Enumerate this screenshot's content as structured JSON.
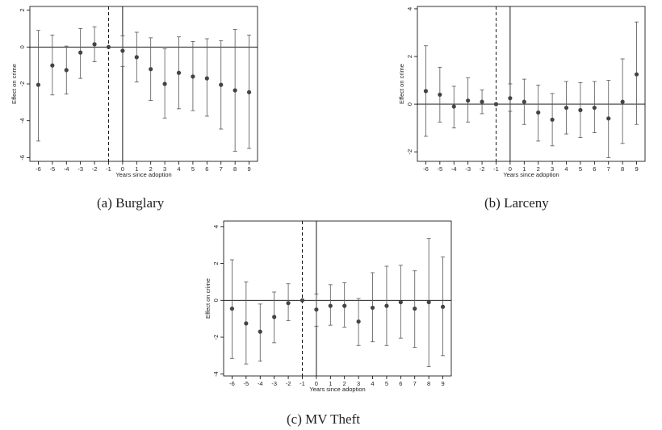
{
  "chart_data": [
    {
      "type": "scatter",
      "caption": "(a) Burglary",
      "xlabel": "Years since adoption",
      "ylabel": "Effect on crime",
      "categories": [
        -6,
        -5,
        -4,
        -3,
        -2,
        -1,
        0,
        1,
        2,
        3,
        4,
        5,
        6,
        7,
        8,
        9
      ],
      "x_tick_labels": [
        "-6",
        "-5",
        "-4",
        "-3",
        "-2",
        "-1",
        "0",
        "1",
        "2",
        "3",
        "4",
        "5",
        "6",
        "7",
        "8",
        "9"
      ],
      "y_ticks": [
        2,
        0,
        -2,
        -4,
        -6
      ],
      "y_tick_labels": [
        "2",
        "0",
        "-2",
        "-4",
        "-6"
      ],
      "ylim": [
        -6.2,
        2.2
      ],
      "xlim": [
        -6.6,
        9.6
      ],
      "estimates": [
        -2.05,
        -1.0,
        -1.25,
        -0.3,
        0.15,
        0.0,
        -0.2,
        -0.55,
        -1.2,
        -2.0,
        -1.4,
        -1.6,
        -1.7,
        -2.05,
        -2.35,
        -2.45
      ],
      "ci_lower": [
        -5.1,
        -2.6,
        -2.55,
        -1.7,
        -0.8,
        null,
        -1.05,
        -1.9,
        -2.9,
        -3.85,
        -3.35,
        -3.45,
        -3.75,
        -4.45,
        -5.65,
        -5.5
      ],
      "ci_upper": [
        0.9,
        0.65,
        0.05,
        1.0,
        1.1,
        null,
        0.6,
        0.8,
        0.5,
        -0.1,
        0.55,
        0.3,
        0.45,
        0.35,
        0.95,
        0.65
      ],
      "reference_lines": {
        "treatment_line_x": -1,
        "zero_line_x": 0,
        "zero_line_y": 0
      },
      "grid": false
    },
    {
      "type": "scatter",
      "caption": "(b) Larceny",
      "xlabel": "Years since adoption",
      "ylabel": "Effect on crime",
      "categories": [
        -6,
        -5,
        -4,
        -3,
        -2,
        -1,
        0,
        1,
        2,
        3,
        4,
        5,
        6,
        7,
        8,
        9
      ],
      "x_tick_labels": [
        "-6",
        "-5",
        "-4",
        "-3",
        "-2",
        "-1",
        "0",
        "1",
        "2",
        "3",
        "4",
        "5",
        "6",
        "7",
        "8",
        "9"
      ],
      "y_ticks": [
        4,
        2,
        0,
        -2
      ],
      "y_tick_labels": [
        "4",
        "2",
        "0",
        "-2"
      ],
      "ylim": [
        -2.4,
        4.1
      ],
      "xlim": [
        -6.6,
        9.6
      ],
      "estimates": [
        0.55,
        0.4,
        -0.1,
        0.15,
        0.1,
        0.0,
        0.25,
        0.1,
        -0.35,
        -0.65,
        -0.15,
        -0.25,
        -0.15,
        -0.6,
        0.1,
        1.25
      ],
      "ci_lower": [
        -1.35,
        -0.75,
        -1.0,
        -0.75,
        -0.4,
        null,
        -0.3,
        -0.85,
        -1.55,
        -1.75,
        -1.25,
        -1.4,
        -1.2,
        -2.25,
        -1.65,
        -0.85
      ],
      "ci_upper": [
        2.45,
        1.55,
        0.75,
        1.1,
        0.6,
        null,
        0.85,
        1.05,
        0.8,
        0.45,
        0.95,
        0.9,
        0.95,
        1.0,
        1.9,
        3.45
      ],
      "reference_lines": {
        "treatment_line_x": -1,
        "zero_line_x": 0,
        "zero_line_y": 0
      },
      "grid": false
    },
    {
      "type": "scatter",
      "caption": "(c) MV Theft",
      "xlabel": "Years since adoption",
      "ylabel": "Effect on crime",
      "categories": [
        -6,
        -5,
        -4,
        -3,
        -2,
        -1,
        0,
        1,
        2,
        3,
        4,
        5,
        6,
        7,
        8,
        9
      ],
      "x_tick_labels": [
        "-6",
        "-5",
        "-4",
        "-3",
        "-2",
        "-1",
        "0",
        "1",
        "2",
        "3",
        "4",
        "5",
        "6",
        "7",
        "8",
        "9"
      ],
      "y_ticks": [
        4,
        2,
        0,
        -2,
        -4
      ],
      "y_tick_labels": [
        "4",
        "2",
        "0",
        "-2",
        "-4"
      ],
      "ylim": [
        -4.1,
        4.3
      ],
      "xlim": [
        -6.6,
        9.6
      ],
      "estimates": [
        -0.45,
        -1.25,
        -1.7,
        -0.9,
        -0.15,
        0.0,
        -0.5,
        -0.3,
        -0.3,
        -1.15,
        -0.4,
        -0.3,
        -0.1,
        -0.45,
        -0.1,
        -0.35
      ],
      "ci_lower": [
        -3.15,
        -3.45,
        -3.3,
        -2.3,
        -1.1,
        null,
        -1.4,
        -1.35,
        -1.45,
        -2.45,
        -2.25,
        -2.45,
        -2.05,
        -2.55,
        -3.6,
        -3.0
      ],
      "ci_upper": [
        2.2,
        1.0,
        -0.2,
        0.45,
        0.9,
        null,
        0.35,
        0.85,
        0.95,
        0.1,
        1.5,
        1.85,
        1.9,
        1.6,
        3.35,
        2.35
      ],
      "reference_lines": {
        "treatment_line_x": -1,
        "zero_line_x": 0,
        "zero_line_y": 0
      },
      "grid": false
    }
  ]
}
